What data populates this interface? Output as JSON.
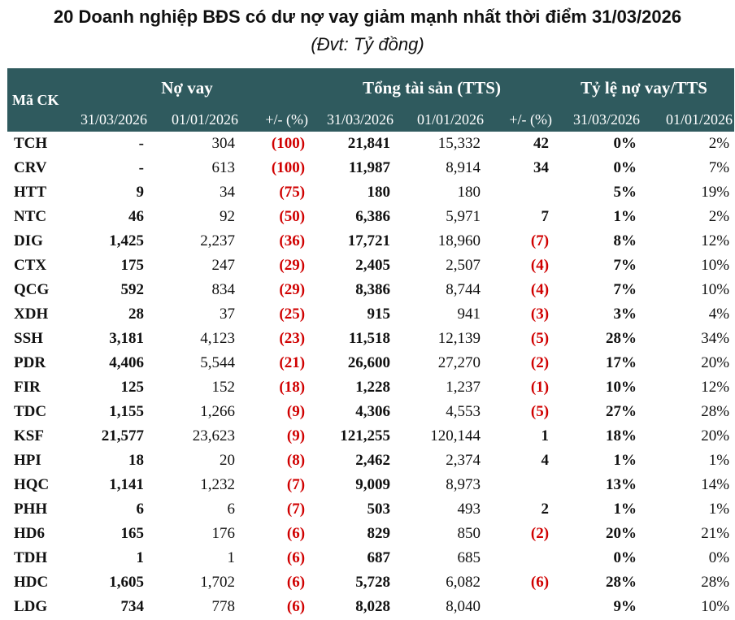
{
  "title": "20 Doanh nghiệp BĐS có dư nợ vay giảm mạnh nhất thời điểm 31/03/2026",
  "subtitle": "(Đvt: Tỷ đồng)",
  "header": {
    "code": "Mã CK",
    "debt_group": "Nợ vay",
    "assets_group": "Tổng tài sản (TTS)",
    "ratio_group": "Tỷ lệ nợ vay/TTS",
    "debt_cols": [
      "31/03/2026",
      "01/01/2026",
      "+/- (%)"
    ],
    "assets_cols": [
      "31/03/2026",
      "01/01/2026",
      "+/- (%)"
    ],
    "ratio_cols": [
      "31/03/2026",
      "01/01/2026"
    ]
  },
  "colors": {
    "header_bg": "#2f5a5e",
    "negative": "#d00000"
  },
  "rows": [
    {
      "code": "TCH",
      "d1": "-",
      "d0": "304",
      "dc": "(100)",
      "a1": "21,841",
      "a0": "15,332",
      "ac": "42",
      "r1": "0%",
      "r0": "2%"
    },
    {
      "code": "CRV",
      "d1": "-",
      "d0": "613",
      "dc": "(100)",
      "a1": "11,987",
      "a0": "8,914",
      "ac": "34",
      "r1": "0%",
      "r0": "7%"
    },
    {
      "code": "HTT",
      "d1": "9",
      "d0": "34",
      "dc": "(75)",
      "a1": "180",
      "a0": "180",
      "ac": "",
      "r1": "5%",
      "r0": "19%"
    },
    {
      "code": "NTC",
      "d1": "46",
      "d0": "92",
      "dc": "(50)",
      "a1": "6,386",
      "a0": "5,971",
      "ac": "7",
      "r1": "1%",
      "r0": "2%"
    },
    {
      "code": "DIG",
      "d1": "1,425",
      "d0": "2,237",
      "dc": "(36)",
      "a1": "17,721",
      "a0": "18,960",
      "ac": "(7)",
      "r1": "8%",
      "r0": "12%"
    },
    {
      "code": "CTX",
      "d1": "175",
      "d0": "247",
      "dc": "(29)",
      "a1": "2,405",
      "a0": "2,507",
      "ac": "(4)",
      "r1": "7%",
      "r0": "10%"
    },
    {
      "code": "QCG",
      "d1": "592",
      "d0": "834",
      "dc": "(29)",
      "a1": "8,386",
      "a0": "8,744",
      "ac": "(4)",
      "r1": "7%",
      "r0": "10%"
    },
    {
      "code": "XDH",
      "d1": "28",
      "d0": "37",
      "dc": "(25)",
      "a1": "915",
      "a0": "941",
      "ac": "(3)",
      "r1": "3%",
      "r0": "4%"
    },
    {
      "code": "SSH",
      "d1": "3,181",
      "d0": "4,123",
      "dc": "(23)",
      "a1": "11,518",
      "a0": "12,139",
      "ac": "(5)",
      "r1": "28%",
      "r0": "34%"
    },
    {
      "code": "PDR",
      "d1": "4,406",
      "d0": "5,544",
      "dc": "(21)",
      "a1": "26,600",
      "a0": "27,270",
      "ac": "(2)",
      "r1": "17%",
      "r0": "20%"
    },
    {
      "code": "FIR",
      "d1": "125",
      "d0": "152",
      "dc": "(18)",
      "a1": "1,228",
      "a0": "1,237",
      "ac": "(1)",
      "r1": "10%",
      "r0": "12%"
    },
    {
      "code": "TDC",
      "d1": "1,155",
      "d0": "1,266",
      "dc": "(9)",
      "a1": "4,306",
      "a0": "4,553",
      "ac": "(5)",
      "r1": "27%",
      "r0": "28%"
    },
    {
      "code": "KSF",
      "d1": "21,577",
      "d0": "23,623",
      "dc": "(9)",
      "a1": "121,255",
      "a0": "120,144",
      "ac": "1",
      "r1": "18%",
      "r0": "20%"
    },
    {
      "code": "HPI",
      "d1": "18",
      "d0": "20",
      "dc": "(8)",
      "a1": "2,462",
      "a0": "2,374",
      "ac": "4",
      "r1": "1%",
      "r0": "1%"
    },
    {
      "code": "HQC",
      "d1": "1,141",
      "d0": "1,232",
      "dc": "(7)",
      "a1": "9,009",
      "a0": "8,973",
      "ac": "",
      "r1": "13%",
      "r0": "14%"
    },
    {
      "code": "PHH",
      "d1": "6",
      "d0": "6",
      "dc": "(7)",
      "a1": "503",
      "a0": "493",
      "ac": "2",
      "r1": "1%",
      "r0": "1%"
    },
    {
      "code": "HD6",
      "d1": "165",
      "d0": "176",
      "dc": "(6)",
      "a1": "829",
      "a0": "850",
      "ac": "(2)",
      "r1": "20%",
      "r0": "21%"
    },
    {
      "code": "TDH",
      "d1": "1",
      "d0": "1",
      "dc": "(6)",
      "a1": "687",
      "a0": "685",
      "ac": "",
      "r1": "0%",
      "r0": "0%"
    },
    {
      "code": "HDC",
      "d1": "1,605",
      "d0": "1,702",
      "dc": "(6)",
      "a1": "5,728",
      "a0": "6,082",
      "ac": "(6)",
      "r1": "28%",
      "r0": "28%"
    },
    {
      "code": "LDG",
      "d1": "734",
      "d0": "778",
      "dc": "(6)",
      "a1": "8,028",
      "a0": "8,040",
      "ac": "",
      "r1": "9%",
      "r0": "10%"
    }
  ]
}
